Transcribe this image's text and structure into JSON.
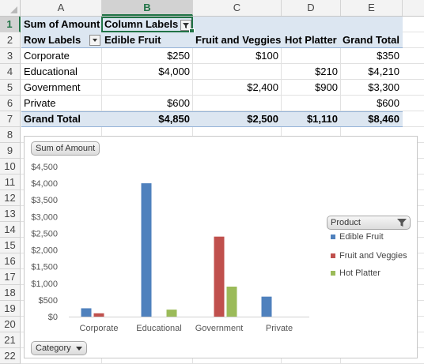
{
  "sheet": {
    "columns": [
      "A",
      "B",
      "C",
      "D",
      "E"
    ],
    "selected_column": "B",
    "rows": [
      "1",
      "2",
      "3",
      "4",
      "5",
      "6",
      "7",
      "8",
      "9",
      "10",
      "11",
      "12",
      "13",
      "14",
      "15",
      "16",
      "17",
      "18",
      "19",
      "20",
      "21",
      "22"
    ],
    "selected_row": "1"
  },
  "pivot": {
    "corner_label": "Sum of Amount",
    "column_labels": "Column Labels",
    "row_labels": "Row Labels",
    "headers": [
      "Edible Fruit",
      "Fruit and Veggies",
      "Hot Platter",
      "Grand Total"
    ],
    "rows": [
      {
        "label": "Corporate",
        "values": [
          "$250",
          "$100",
          "",
          "$350"
        ]
      },
      {
        "label": "Educational",
        "values": [
          "$4,000",
          "",
          "$210",
          "$4,210"
        ]
      },
      {
        "label": "Government",
        "values": [
          "",
          "$2,400",
          "$900",
          "$3,300"
        ]
      },
      {
        "label": "Private",
        "values": [
          "$600",
          "",
          "",
          "$600"
        ]
      }
    ],
    "grand_total": {
      "label": "Grand Total",
      "values": [
        "$4,850",
        "$2,500",
        "$1,110",
        "$8,460"
      ]
    }
  },
  "chart_data": {
    "type": "bar",
    "title": "",
    "field_buttons": {
      "values": "Sum of Amount",
      "axis": "Category",
      "legend": "Product"
    },
    "categories": [
      "Corporate",
      "Educational",
      "Government",
      "Private"
    ],
    "series": [
      {
        "name": "Edible Fruit",
        "color": "#4f81bd",
        "values": [
          250,
          4000,
          0,
          600
        ]
      },
      {
        "name": "Fruit and Veggies",
        "color": "#c0504d",
        "values": [
          100,
          0,
          2400,
          0
        ]
      },
      {
        "name": "Hot Platter",
        "color": "#9bbb59",
        "values": [
          0,
          210,
          900,
          0
        ]
      }
    ],
    "yticks": [
      "$0",
      "$500",
      "$1,000",
      "$1,500",
      "$2,000",
      "$2,500",
      "$3,000",
      "$3,500",
      "$4,000",
      "$4,500"
    ],
    "ylim": [
      0,
      4500
    ],
    "grid": false,
    "legend_position": "right"
  }
}
